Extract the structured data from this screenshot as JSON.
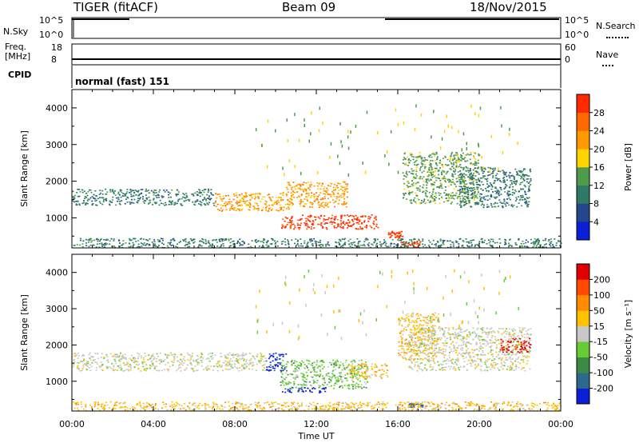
{
  "header": {
    "title": "TIGER (fitACF)",
    "beam": "Beam 09",
    "date": "18/Nov/2015"
  },
  "strips": {
    "nsky": {
      "label": "N.Sky",
      "ticks": [
        "10^5",
        "10^0"
      ]
    },
    "nsearch": {
      "label": "N.Search",
      "ticks": [
        "10^5",
        "10^0"
      ]
    },
    "freq": {
      "label_top": "Freq.",
      "label_bottom": "[MHz]",
      "ticks": [
        "18",
        "8"
      ]
    },
    "nave": {
      "label": "Nave",
      "ticks": [
        "60",
        "0"
      ]
    },
    "cpid": {
      "label": "CPID",
      "value": "normal (fast) 151"
    }
  },
  "chart_data": [
    {
      "type": "heatmap",
      "name": "Power",
      "ylabel": "Slant Range [km]",
      "xlabel": "",
      "xlim": [
        0,
        24
      ],
      "ylim": [
        180,
        4500
      ],
      "yticks": [
        1000,
        2000,
        3000,
        4000
      ],
      "colorbar": {
        "label": "Power [dB]",
        "ticks": [
          "4",
          "8",
          "12",
          "16",
          "20",
          "24",
          "28"
        ],
        "colors": [
          "#0b1fd6",
          "#24468c",
          "#2f7a66",
          "#4f9b4c",
          "#ffd400",
          "#ff9a00",
          "#ff6a00",
          "#ff2a00"
        ]
      },
      "regions": [
        {
          "x": [
            0.0,
            7.0
          ],
          "y": [
            1350,
            1800
          ],
          "c": 2
        },
        {
          "x": [
            7.0,
            10.8
          ],
          "y": [
            1200,
            1700
          ],
          "c": 5
        },
        {
          "x": [
            10.5,
            13.5
          ],
          "y": [
            1300,
            2000
          ],
          "c": 5
        },
        {
          "x": [
            10.2,
            15.0
          ],
          "y": [
            700,
            1100
          ],
          "c": 7
        },
        {
          "x": [
            15.5,
            16.2
          ],
          "y": [
            450,
            650
          ],
          "c": 7
        },
        {
          "x": [
            16.1,
            17.1
          ],
          "y": [
            200,
            380
          ],
          "c": 7
        },
        {
          "x": [
            16.2,
            20.0
          ],
          "y": [
            1400,
            2800
          ],
          "c": 3
        },
        {
          "x": [
            19.0,
            22.5
          ],
          "y": [
            1300,
            2400
          ],
          "c": 2
        },
        {
          "x": [
            0.0,
            24.0
          ],
          "y": [
            200,
            450
          ],
          "c": 2
        }
      ]
    },
    {
      "type": "heatmap",
      "name": "Velocity",
      "ylabel": "Slant Range [km]",
      "xlabel": "Time UT",
      "xlim": [
        0,
        24
      ],
      "xticks": [
        "00:00",
        "04:00",
        "08:00",
        "12:00",
        "16:00",
        "20:00",
        "00:00"
      ],
      "ylim": [
        180,
        4500
      ],
      "yticks": [
        1000,
        2000,
        3000,
        4000
      ],
      "colorbar": {
        "label": "Velocity [m s^-1]",
        "ticks": [
          "200",
          "100",
          "50",
          "15",
          "-15",
          "-50",
          "-100",
          "-200"
        ],
        "colors": [
          "#0b1fd6",
          "#2c6a8c",
          "#3c8a44",
          "#66cc33",
          "#c8c8c8",
          "#ffc200",
          "#ff8c00",
          "#ff4a00",
          "#e00000"
        ]
      },
      "regions": [
        {
          "x": [
            0.0,
            9.5
          ],
          "y": [
            1300,
            1800
          ],
          "c": 4
        },
        {
          "x": [
            9.5,
            10.5
          ],
          "y": [
            1300,
            1800
          ],
          "c": 0
        },
        {
          "x": [
            10.2,
            14.5
          ],
          "y": [
            800,
            1600
          ],
          "c": 3
        },
        {
          "x": [
            10.3,
            12.5
          ],
          "y": [
            700,
            850
          ],
          "c": 0
        },
        {
          "x": [
            13.5,
            15.5
          ],
          "y": [
            1100,
            1500
          ],
          "c": 5
        },
        {
          "x": [
            16.0,
            18.0
          ],
          "y": [
            1600,
            2900
          ],
          "c": 5
        },
        {
          "x": [
            16.5,
            22.5
          ],
          "y": [
            1300,
            2500
          ],
          "c": 4
        },
        {
          "x": [
            21.0,
            22.5
          ],
          "y": [
            1800,
            2200
          ],
          "c": 8
        },
        {
          "x": [
            16.5,
            17.2
          ],
          "y": [
            300,
            400
          ],
          "c": 1
        },
        {
          "x": [
            0.0,
            24.0
          ],
          "y": [
            200,
            450
          ],
          "c": 5
        }
      ]
    }
  ]
}
